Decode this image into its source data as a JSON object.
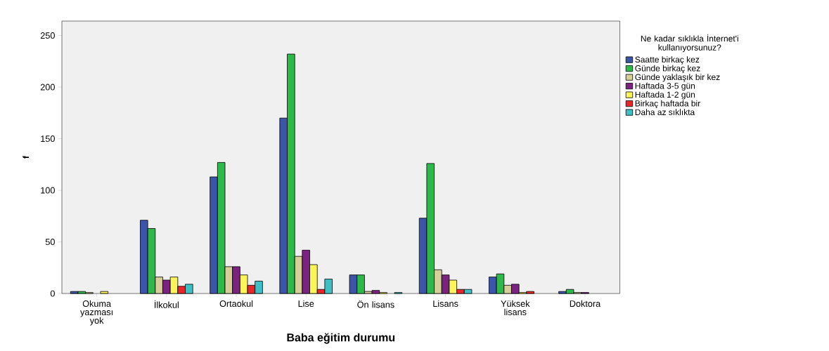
{
  "chart_data": {
    "type": "bar",
    "xlabel": "Baba eğitim durumu",
    "ylabel": "f",
    "legend_title": "Ne kadar sıklıkla İnternet'i kullanıyorsunuz?",
    "categories": [
      "Okuma yazması yok",
      "İlkokul",
      "Ortaokul",
      "Lise",
      "Ön lisans",
      "Lisans",
      "Yüksek lisans",
      "Doktora"
    ],
    "series": [
      {
        "name": "Saatte birkaç kez",
        "color": "#3c55a8",
        "values": [
          2,
          71,
          113,
          170,
          18,
          73,
          16,
          2
        ]
      },
      {
        "name": "Günde birkaç kez",
        "color": "#2db84a",
        "values": [
          2,
          63,
          127,
          232,
          18,
          126,
          19,
          4
        ]
      },
      {
        "name": "Günde yaklaşık bir kez",
        "color": "#d6cf99",
        "values": [
          1,
          16,
          26,
          36,
          2,
          23,
          8,
          1
        ]
      },
      {
        "name": "Haftada 3-5 gün",
        "color": "#7a2380",
        "values": [
          null,
          13,
          26,
          42,
          3,
          18,
          9,
          1
        ]
      },
      {
        "name": "Haftada 1-2 gün",
        "color": "#fbf55a",
        "values": [
          2,
          16,
          18,
          28,
          1,
          13,
          1,
          null
        ]
      },
      {
        "name": "Birkaç haftada bir",
        "color": "#e8262a",
        "values": [
          null,
          7,
          8,
          4,
          null,
          4,
          2,
          null
        ]
      },
      {
        "name": "Daha az sıklıkta",
        "color": "#3fbfc4",
        "values": [
          null,
          9,
          12,
          14,
          1,
          4,
          null,
          null
        ]
      }
    ],
    "ylim": [
      0,
      264
    ],
    "yticks": [
      0,
      50,
      100,
      150,
      200,
      250
    ],
    "grid": false,
    "legend": "right"
  }
}
